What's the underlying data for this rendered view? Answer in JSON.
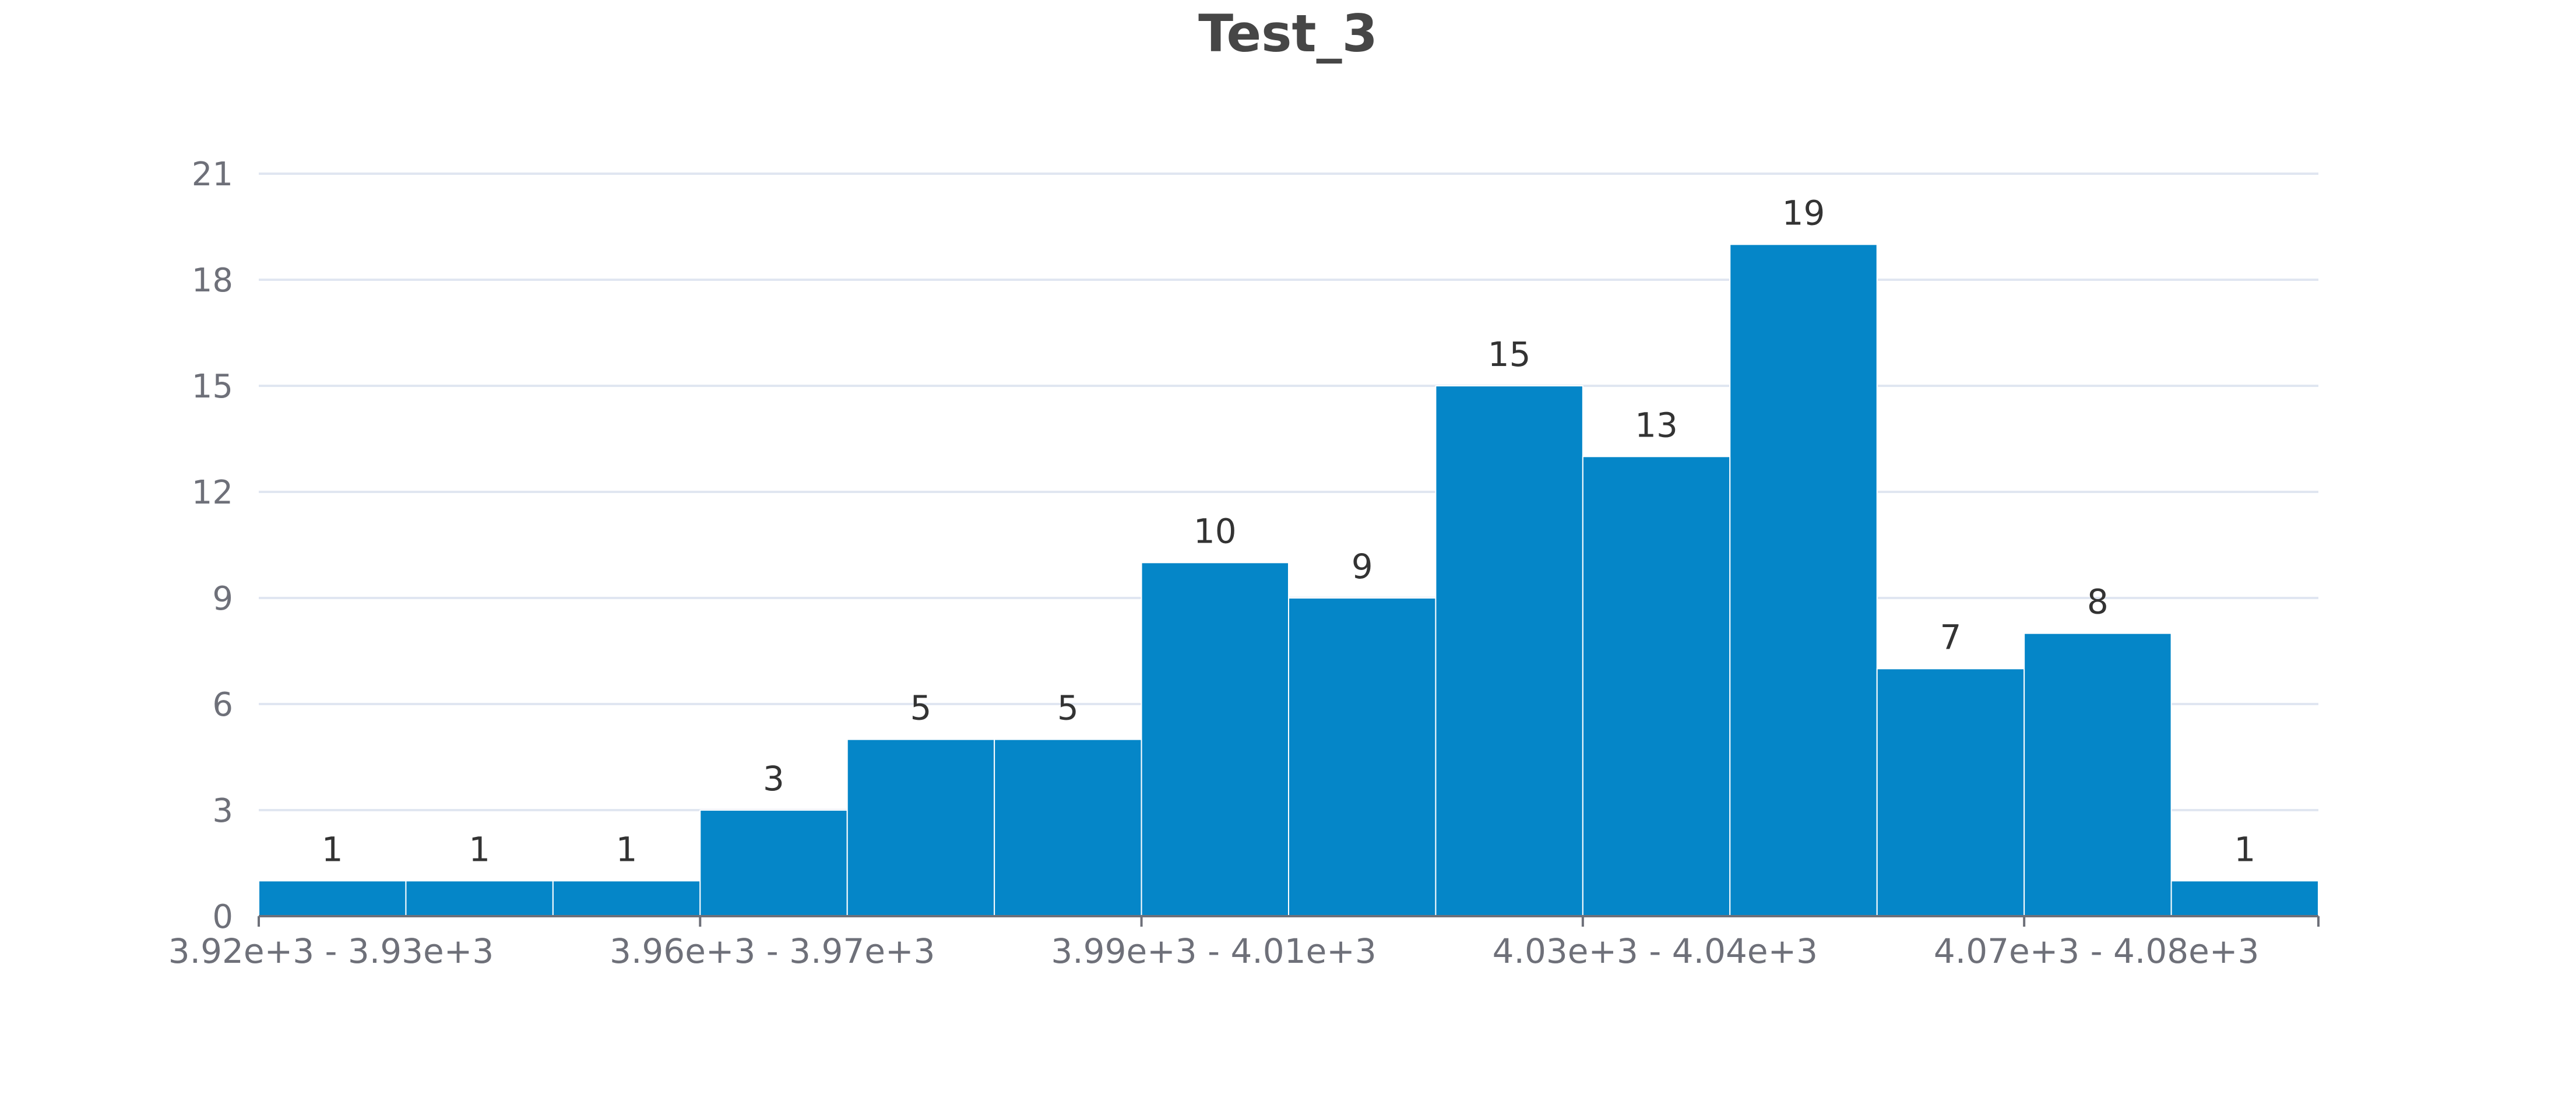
{
  "chart_data": {
    "type": "bar",
    "title": "Test_3",
    "xlabel": "",
    "ylabel": "",
    "ylim": [
      0,
      21
    ],
    "y_ticks": [
      0,
      3,
      6,
      9,
      12,
      15,
      18,
      21
    ],
    "grid": true,
    "bin_count": 14,
    "values": [
      1,
      1,
      1,
      3,
      5,
      5,
      10,
      9,
      15,
      13,
      19,
      7,
      8,
      1
    ],
    "x_tick_labels": [
      {
        "bin_start": 0,
        "label": "3.92e+3 - 3.93e+3"
      },
      {
        "bin_start": 3,
        "label": "3.96e+3 - 3.97e+3"
      },
      {
        "bin_start": 6,
        "label": "3.99e+3 - 4.01e+3"
      },
      {
        "bin_start": 9,
        "label": "4.03e+3 - 4.04e+3"
      },
      {
        "bin_start": 12,
        "label": "4.07e+3 - 4.08e+3"
      }
    ],
    "colors": {
      "bar": "#0586c8",
      "grid": "#e0e6f1",
      "axis": "#6e7079",
      "title": "#464646",
      "label": "#333333"
    }
  }
}
